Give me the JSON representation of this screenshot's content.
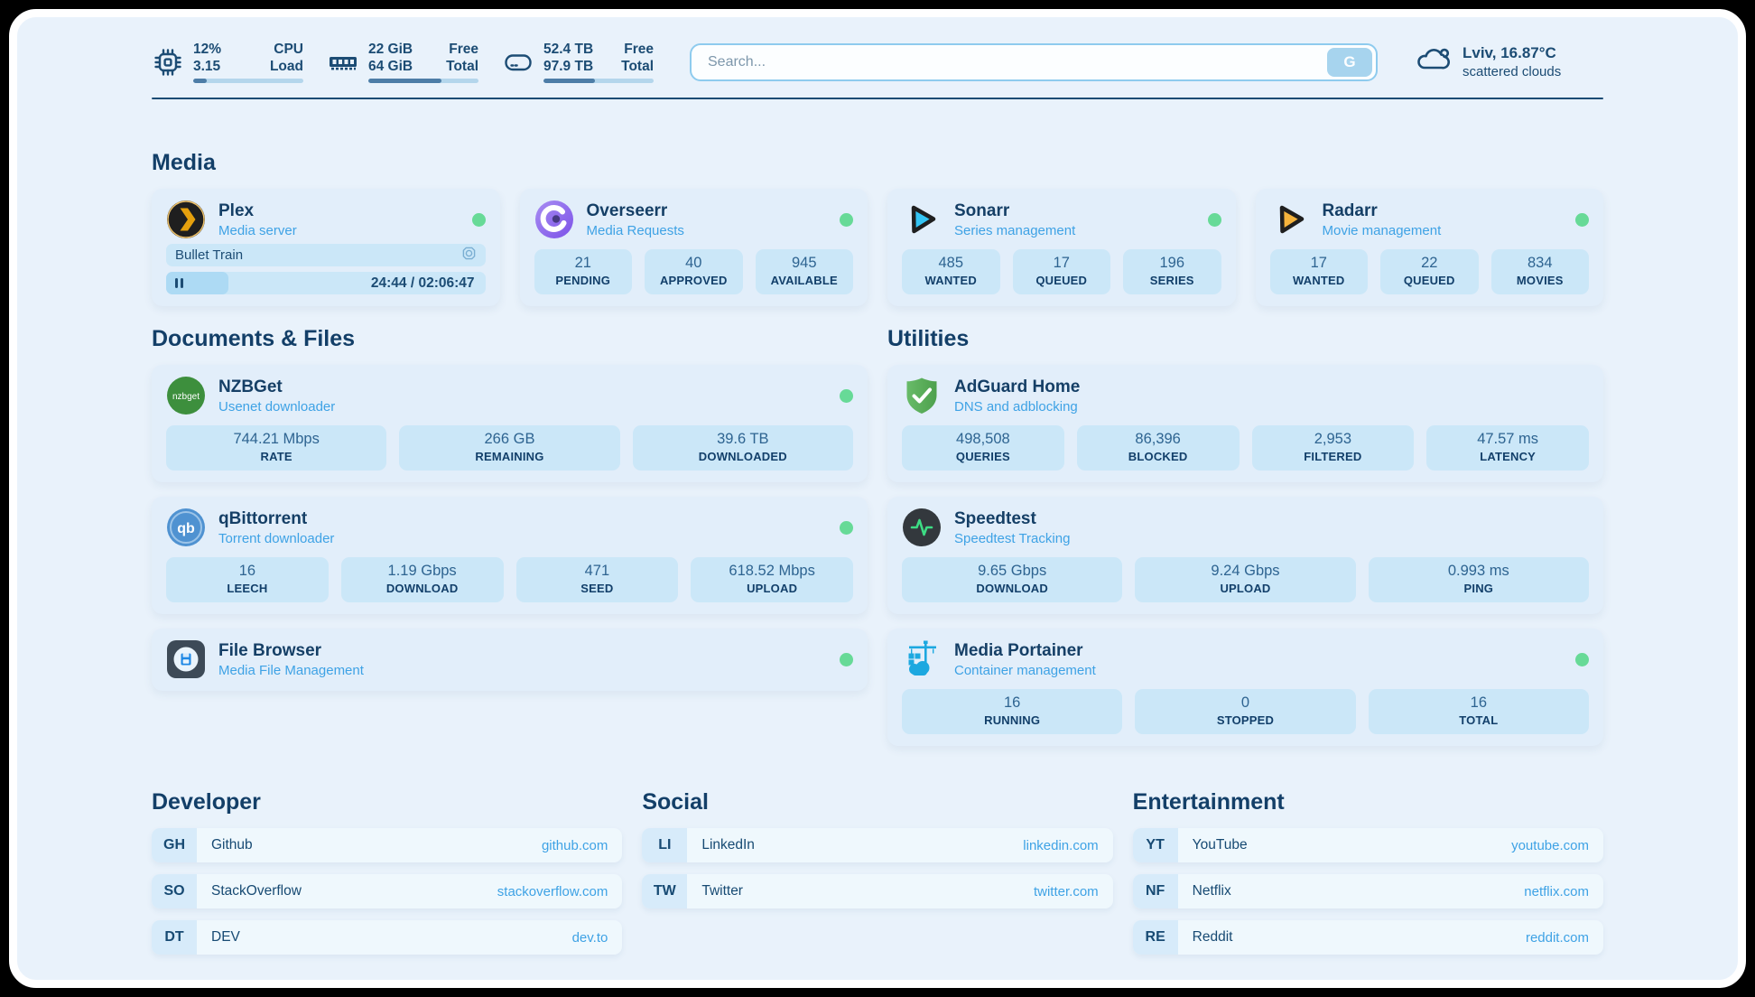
{
  "colors": {
    "page_background": "#e9f2fb",
    "accent_blue": "#3ea2e5",
    "navy_text": "#1c4c74",
    "status_online_green": "#67da97"
  },
  "topbar": {
    "resources": [
      {
        "icon": "cpu-icon",
        "value_top": "12%",
        "value_bottom": "3.15",
        "label_top": "CPU",
        "label_bottom": "Load",
        "progress_pct": 12
      },
      {
        "icon": "memory-icon",
        "value_top": "22 GiB",
        "value_bottom": "64 GiB",
        "label_top": "Free",
        "label_bottom": "Total",
        "progress_pct": 66
      },
      {
        "icon": "disk-icon",
        "value_top": "52.4 TB",
        "value_bottom": "97.9 TB",
        "label_top": "Free",
        "label_bottom": "Total",
        "progress_pct": 47
      }
    ],
    "search": {
      "placeholder": "Search...",
      "button_label": "G"
    },
    "weather": {
      "location_temperature": "Lviv, 16.87°C",
      "condition": "scattered clouds"
    }
  },
  "sections": {
    "media": {
      "title": "Media"
    },
    "documents": {
      "title": "Documents & Files"
    },
    "utilities": {
      "title": "Utilities"
    },
    "developer": {
      "title": "Developer"
    },
    "social": {
      "title": "Social"
    },
    "entertainment": {
      "title": "Entertainment"
    }
  },
  "services": {
    "plex": {
      "name": "Plex",
      "description": "Media server",
      "status": "online",
      "now_playing": {
        "title": "Bullet Train",
        "time": "24:44 / 02:06:47",
        "progress_pct": 19.5
      }
    },
    "overseerr": {
      "name": "Overseerr",
      "description": "Media Requests",
      "status": "online",
      "stats": [
        {
          "value": "21",
          "label": "PENDING"
        },
        {
          "value": "40",
          "label": "APPROVED"
        },
        {
          "value": "945",
          "label": "AVAILABLE"
        }
      ]
    },
    "sonarr": {
      "name": "Sonarr",
      "description": "Series management",
      "status": "online",
      "stats": [
        {
          "value": "485",
          "label": "WANTED"
        },
        {
          "value": "17",
          "label": "QUEUED"
        },
        {
          "value": "196",
          "label": "SERIES"
        }
      ]
    },
    "radarr": {
      "name": "Radarr",
      "description": "Movie management",
      "status": "online",
      "stats": [
        {
          "value": "17",
          "label": "WANTED"
        },
        {
          "value": "22",
          "label": "QUEUED"
        },
        {
          "value": "834",
          "label": "MOVIES"
        }
      ]
    },
    "nzbget": {
      "name": "NZBGet",
      "description": "Usenet downloader",
      "status": "online",
      "stats": [
        {
          "value": "744.21 Mbps",
          "label": "RATE"
        },
        {
          "value": "266 GB",
          "label": "REMAINING"
        },
        {
          "value": "39.6 TB",
          "label": "DOWNLOADED"
        }
      ]
    },
    "qbittorrent": {
      "name": "qBittorrent",
      "description": "Torrent downloader",
      "status": "online",
      "stats": [
        {
          "value": "16",
          "label": "LEECH"
        },
        {
          "value": "1.19 Gbps",
          "label": "DOWNLOAD"
        },
        {
          "value": "471",
          "label": "SEED"
        },
        {
          "value": "618.52 Mbps",
          "label": "UPLOAD"
        }
      ]
    },
    "filebrowser": {
      "name": "File Browser",
      "description": "Media File Management",
      "status": "online"
    },
    "adguard": {
      "name": "AdGuard Home",
      "description": "DNS and adblocking",
      "stats": [
        {
          "value": "498,508",
          "label": "QUERIES"
        },
        {
          "value": "86,396",
          "label": "BLOCKED"
        },
        {
          "value": "2,953",
          "label": "FILTERED"
        },
        {
          "value": "47.57 ms",
          "label": "LATENCY"
        }
      ]
    },
    "speedtest": {
      "name": "Speedtest",
      "description": "Speedtest Tracking",
      "stats": [
        {
          "value": "9.65 Gbps",
          "label": "DOWNLOAD"
        },
        {
          "value": "9.24 Gbps",
          "label": "UPLOAD"
        },
        {
          "value": "0.993 ms",
          "label": "PING"
        }
      ]
    },
    "portainer": {
      "name": "Media Portainer",
      "description": "Container management",
      "status": "online",
      "stats": [
        {
          "value": "16",
          "label": "RUNNING"
        },
        {
          "value": "0",
          "label": "STOPPED"
        },
        {
          "value": "16",
          "label": "TOTAL"
        }
      ]
    }
  },
  "bookmarks": {
    "developer": [
      {
        "abbr": "GH",
        "name": "Github",
        "url": "github.com"
      },
      {
        "abbr": "SO",
        "name": "StackOverflow",
        "url": "stackoverflow.com"
      },
      {
        "abbr": "DT",
        "name": "DEV",
        "url": "dev.to"
      }
    ],
    "social": [
      {
        "abbr": "LI",
        "name": "LinkedIn",
        "url": "linkedin.com"
      },
      {
        "abbr": "TW",
        "name": "Twitter",
        "url": "twitter.com"
      }
    ],
    "entertainment": [
      {
        "abbr": "YT",
        "name": "YouTube",
        "url": "youtube.com"
      },
      {
        "abbr": "NF",
        "name": "Netflix",
        "url": "netflix.com"
      },
      {
        "abbr": "RE",
        "name": "Reddit",
        "url": "reddit.com"
      }
    ]
  }
}
